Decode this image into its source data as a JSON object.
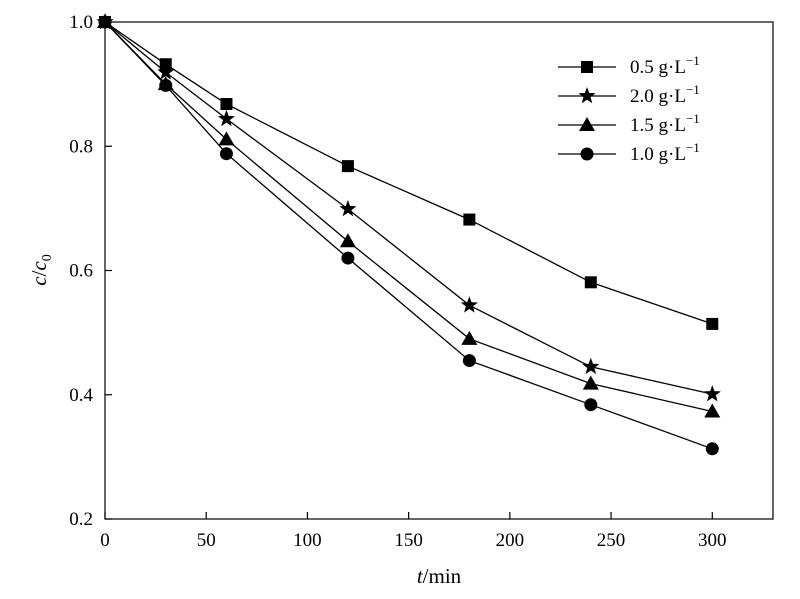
{
  "chart_data": {
    "type": "line",
    "title": "",
    "xlabel": {
      "var": "t",
      "unit": "/min"
    },
    "ylabel": {
      "c": "c",
      "slash": "/",
      "c0_base": "c",
      "c0_sub": "0"
    },
    "xlim": [
      0,
      330
    ],
    "ylim": [
      0.2,
      1.0
    ],
    "xticks": [
      0,
      50,
      100,
      150,
      200,
      250,
      300
    ],
    "yticks": [
      0.2,
      0.4,
      0.6,
      0.8,
      1.0
    ],
    "xtick_labels": [
      "0",
      "50",
      "100",
      "150",
      "200",
      "250",
      "300"
    ],
    "ytick_labels": [
      "0.2",
      "0.4",
      "0.6",
      "0.8",
      "1.0"
    ],
    "grid": false,
    "legend_position": "top-right",
    "series": [
      {
        "name": "0.5 g·L",
        "name_sup": "−1",
        "marker": "square",
        "x": [
          0,
          30,
          60,
          120,
          180,
          240,
          300
        ],
        "y": [
          1.0,
          0.932,
          0.868,
          0.768,
          0.682,
          0.581,
          0.514
        ]
      },
      {
        "name": "2.0 g·L",
        "name_sup": "−1",
        "marker": "star",
        "x": [
          0,
          30,
          60,
          120,
          180,
          240,
          300
        ],
        "y": [
          1.0,
          0.919,
          0.844,
          0.699,
          0.544,
          0.445,
          0.401
        ]
      },
      {
        "name": "1.5 g·L",
        "name_sup": "−1",
        "marker": "triangle",
        "x": [
          0,
          30,
          60,
          120,
          180,
          240,
          300
        ],
        "y": [
          1.0,
          0.9,
          0.811,
          0.647,
          0.49,
          0.418,
          0.373
        ]
      },
      {
        "name": "1.0 g·L",
        "name_sup": "−1",
        "marker": "circle",
        "x": [
          0,
          30,
          60,
          120,
          180,
          240,
          300
        ],
        "y": [
          1.0,
          0.898,
          0.788,
          0.62,
          0.455,
          0.384,
          0.313
        ]
      }
    ]
  }
}
